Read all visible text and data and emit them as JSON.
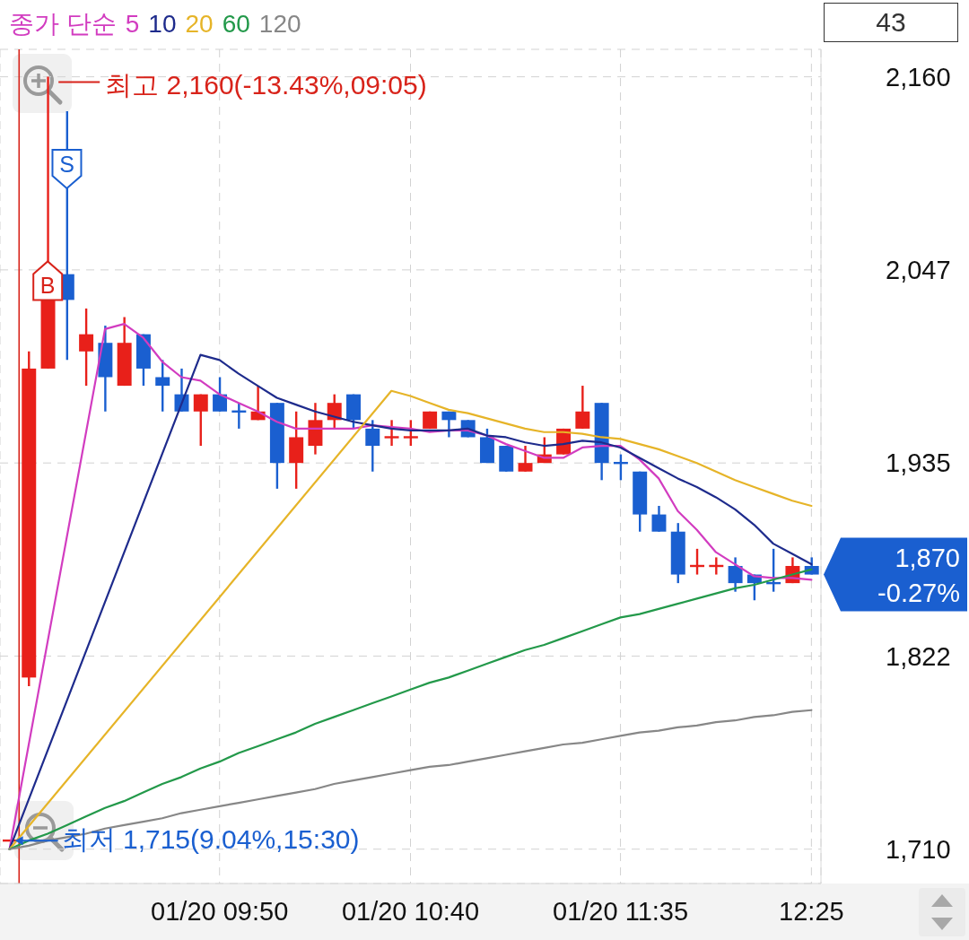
{
  "chart_data": {
    "type": "candlestick",
    "legend_title": "종가 단순",
    "legend": "top left",
    "grid": true,
    "categories": [
      null,
      null,
      null,
      null,
      null,
      null,
      null,
      null,
      null,
      null,
      null,
      "01/20 09:50",
      null,
      null,
      null,
      null,
      null,
      null,
      null,
      null,
      null,
      "01/20 10:40",
      null,
      null,
      null,
      null,
      null,
      null,
      null,
      null,
      null,
      null,
      "01/20 11:35",
      null,
      null,
      null,
      null,
      null,
      null,
      null,
      null,
      null,
      "12:25"
    ],
    "ohlc": [
      [
        1715,
        1715,
        1715,
        1715
      ],
      [
        1810,
        2000,
        1805,
        1990
      ],
      [
        1990,
        2160,
        1990,
        2030
      ],
      [
        2045,
        2140,
        1995,
        2030
      ],
      [
        2000,
        2025,
        1980,
        2010
      ],
      [
        2005,
        2015,
        1965,
        1985
      ],
      [
        1980,
        2020,
        1980,
        2005
      ],
      [
        2010,
        2010,
        1980,
        1990
      ],
      [
        1985,
        1995,
        1965,
        1980
      ],
      [
        1975,
        1990,
        1965,
        1965
      ],
      [
        1965,
        1975,
        1945,
        1975
      ],
      [
        1975,
        1985,
        1965,
        1965
      ],
      [
        1965,
        1970,
        1955,
        1965
      ],
      [
        1960,
        1980,
        1960,
        1965
      ],
      [
        1970,
        1970,
        1920,
        1935
      ],
      [
        1935,
        1965,
        1920,
        1950
      ],
      [
        1945,
        1970,
        1940,
        1960
      ],
      [
        1960,
        1975,
        1955,
        1970
      ],
      [
        1975,
        1975,
        1955,
        1960
      ],
      [
        1955,
        1960,
        1930,
        1945
      ],
      [
        1950,
        1960,
        1945,
        1950
      ],
      [
        1950,
        1960,
        1945,
        1950
      ],
      [
        1955,
        1965,
        1955,
        1965
      ],
      [
        1965,
        1965,
        1950,
        1960
      ],
      [
        1960,
        1960,
        1950,
        1950
      ],
      [
        1950,
        1955,
        1935,
        1935
      ],
      [
        1945,
        1945,
        1930,
        1930
      ],
      [
        1930,
        1945,
        1930,
        1935
      ],
      [
        1935,
        1950,
        1935,
        1940
      ],
      [
        1940,
        1955,
        1940,
        1955
      ],
      [
        1955,
        1980,
        1955,
        1965
      ],
      [
        1970,
        1970,
        1925,
        1935
      ],
      [
        1935,
        1940,
        1925,
        1935
      ],
      [
        1930,
        1930,
        1895,
        1905
      ],
      [
        1905,
        1910,
        1895,
        1895
      ],
      [
        1895,
        1900,
        1865,
        1870
      ],
      [
        1875,
        1885,
        1870,
        1875
      ],
      [
        1875,
        1880,
        1870,
        1875
      ],
      [
        1875,
        1880,
        1860,
        1865
      ],
      [
        1870,
        1870,
        1855,
        1865
      ],
      [
        1865,
        1885,
        1860,
        1865
      ],
      [
        1865,
        1880,
        1865,
        1875
      ],
      [
        1875,
        1880,
        1870,
        1870
      ]
    ],
    "colors": [
      "#e8201a",
      "#e8201a",
      "#e8201a",
      "#1a5fd0",
      "#e8201a",
      "#1a5fd0",
      "#e8201a",
      "#1a5fd0",
      "#1a5fd0",
      "#1a5fd0",
      "#e8201a",
      "#1a5fd0",
      "#1a5fd0",
      "#e8201a",
      "#1a5fd0",
      "#e8201a",
      "#e8201a",
      "#e8201a",
      "#1a5fd0",
      "#1a5fd0",
      "#e8201a",
      "#e8201a",
      "#e8201a",
      "#1a5fd0",
      "#1a5fd0",
      "#1a5fd0",
      "#1a5fd0",
      "#e8201a",
      "#e8201a",
      "#e8201a",
      "#e8201a",
      "#1a5fd0",
      "#1a5fd0",
      "#1a5fd0",
      "#1a5fd0",
      "#1a5fd0",
      "#e8201a",
      "#e8201a",
      "#1a5fd0",
      "#1a5fd0",
      "#1a5fd0",
      "#e8201a",
      "#1a5fd0"
    ],
    "series": [
      {
        "name": "5",
        "type": "line",
        "color": "#d23cc0",
        "values": [
          1710,
          null,
          null,
          null,
          null,
          2013,
          2016,
          2008,
          1994,
          1985,
          1983,
          1975,
          1970,
          1965,
          1959,
          1955,
          1955,
          1955,
          1955,
          1957,
          1956,
          1955,
          1953,
          1954,
          1954,
          1951,
          1946,
          1942,
          1938,
          1938,
          1944,
          1945,
          1945,
          1937,
          1926,
          1907,
          1896,
          1883,
          1876,
          1869,
          1868,
          1868,
          1867
        ]
      },
      {
        "name": "10",
        "type": "line",
        "color": "#1e2b8c",
        "values": [
          1710,
          null,
          null,
          null,
          null,
          null,
          null,
          null,
          null,
          null,
          1998,
          1995,
          1987,
          1980,
          1973,
          1969,
          1965,
          1962,
          1959,
          1957,
          1955,
          1954,
          1954,
          1954,
          1955,
          1951,
          1950,
          1947,
          1945,
          1946,
          1948,
          1947,
          1944,
          1938,
          1932,
          1926,
          1921,
          1915,
          1908,
          1899,
          1888,
          1882,
          1876
        ]
      },
      {
        "name": "20",
        "type": "line",
        "color": "#e6b428",
        "values": [
          1710,
          null,
          null,
          null,
          null,
          null,
          null,
          null,
          null,
          null,
          null,
          null,
          null,
          null,
          null,
          null,
          null,
          null,
          null,
          null,
          1977,
          1974,
          1970,
          1966,
          1964,
          1961,
          1958,
          1955,
          1953,
          1953,
          1952,
          1950,
          1949,
          1946,
          1943,
          1939,
          1935,
          1930,
          1925,
          1921,
          1917,
          1913,
          1910
        ]
      },
      {
        "name": "60",
        "type": "line",
        "color": "#23994a",
        "values": [
          1710,
          1715,
          1719,
          1724,
          1729,
          1734,
          1738,
          1743,
          1748,
          1752,
          1757,
          1761,
          1766,
          1770,
          1774,
          1778,
          1783,
          1787,
          1791,
          1795,
          1799,
          1803,
          1807,
          1810,
          1814,
          1818,
          1822,
          1826,
          1829,
          1833,
          1837,
          1841,
          1845,
          1847,
          1850,
          1853,
          1856,
          1859,
          1862,
          1864,
          1867,
          1870,
          1873
        ]
      },
      {
        "name": "120",
        "type": "line",
        "color": "#878787",
        "values": [
          1710,
          1712,
          1715,
          1717,
          1719,
          1722,
          1724,
          1726,
          1728,
          1731,
          1733,
          1735,
          1737,
          1739,
          1741,
          1743,
          1745,
          1748,
          1750,
          1752,
          1754,
          1756,
          1758,
          1759,
          1761,
          1763,
          1765,
          1767,
          1769,
          1771,
          1772,
          1774,
          1776,
          1778,
          1779,
          1781,
          1782,
          1784,
          1785,
          1787,
          1788,
          1790,
          1791
        ]
      }
    ],
    "ylim": [
      1690,
      2176
    ],
    "yticks": [
      {
        "value": 1710,
        "label": "1,710"
      },
      {
        "value": 1822.5,
        "label": "1,822"
      },
      {
        "value": 1935,
        "label": "1,935"
      },
      {
        "value": 2047.5,
        "label": "2,047"
      },
      {
        "value": 2160,
        "label": "2,160"
      }
    ],
    "annotations": [
      "최고 2,160(-13.43%,09:05)",
      "최저 1,715(9.04%,15:30)",
      {
        "text": "B",
        "y": 2030
      },
      {
        "text": "S",
        "y": 2095
      },
      "1,870",
      "-0.27%",
      "43"
    ]
  }
}
